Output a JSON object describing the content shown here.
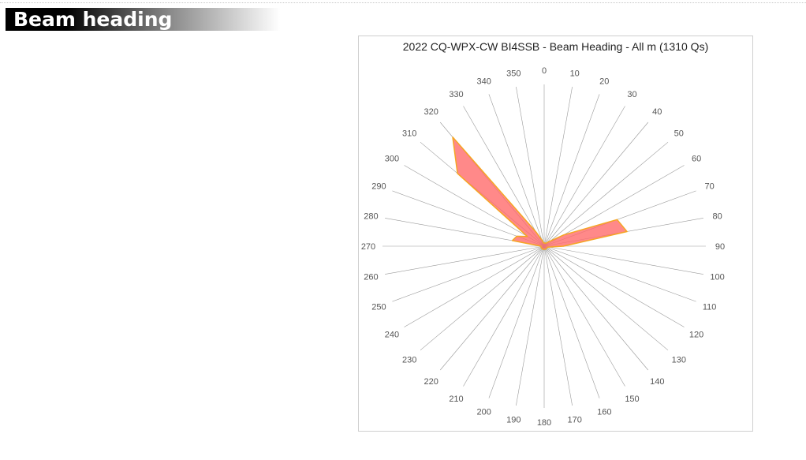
{
  "header": {
    "title": "Beam heading"
  },
  "colors": {
    "fill": "#ff6b6b",
    "stroke": "#f5a623",
    "spoke": "#9a9a9a"
  },
  "chart_data": {
    "type": "radar",
    "title": "2022 CQ-WPX-CW BI4SSB - Beam Heading - All m (1310 Qs)",
    "categories": [
      "0",
      "10",
      "20",
      "30",
      "40",
      "50",
      "60",
      "70",
      "80",
      "90",
      "100",
      "110",
      "120",
      "130",
      "140",
      "150",
      "160",
      "170",
      "180",
      "190",
      "200",
      "210",
      "220",
      "230",
      "240",
      "250",
      "260",
      "270",
      "280",
      "290",
      "300",
      "310",
      "320",
      "330",
      "340",
      "350"
    ],
    "series": [
      {
        "values": [
          2,
          2,
          2,
          2,
          3,
          5,
          14,
          48,
          52,
          12,
          3,
          2,
          2,
          2,
          2,
          2,
          2,
          2,
          2,
          2,
          2,
          2,
          2,
          2,
          2,
          2,
          2,
          2,
          20,
          18,
          12,
          70,
          88,
          10,
          4,
          2
        ]
      }
    ],
    "rmax": 100,
    "grid": true
  }
}
